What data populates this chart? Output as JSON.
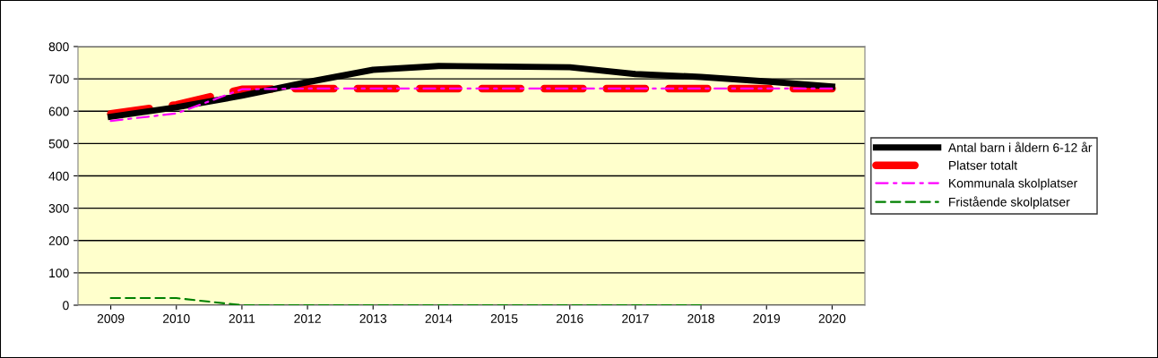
{
  "chart_data": {
    "type": "line",
    "categories": [
      "2009",
      "2010",
      "2011",
      "2012",
      "2013",
      "2014",
      "2015",
      "2016",
      "2017",
      "2018",
      "2019",
      "2020"
    ],
    "series": [
      {
        "name": "Antal barn i åldern 6-12 år",
        "color": "#000000",
        "line_style": "solid",
        "values": [
          583,
          612,
          648,
          690,
          728,
          740,
          738,
          736,
          715,
          706,
          692,
          676
        ]
      },
      {
        "name": "Platser totalt",
        "color": "#ff0000",
        "line_style": "dashed",
        "values": [
          592,
          620,
          668,
          670,
          670,
          670,
          670,
          670,
          670,
          670,
          670,
          670
        ]
      },
      {
        "name": "Kommunala skolplatser",
        "color": "#ff00ff",
        "line_style": "dashdot",
        "values": [
          570,
          593,
          668,
          670,
          670,
          670,
          670,
          670,
          670,
          670,
          670,
          670
        ]
      },
      {
        "name": "Fristående skolplatser",
        "color": "#008000",
        "line_style": "dashed",
        "values": [
          22,
          22,
          0,
          0,
          0,
          0,
          0,
          0,
          0,
          0,
          null,
          null
        ]
      }
    ],
    "ylim": [
      0,
      800
    ],
    "yticks": [
      0,
      100,
      200,
      300,
      400,
      500,
      600,
      700,
      800
    ],
    "grid": "y",
    "legend": "right",
    "marker": "none"
  }
}
